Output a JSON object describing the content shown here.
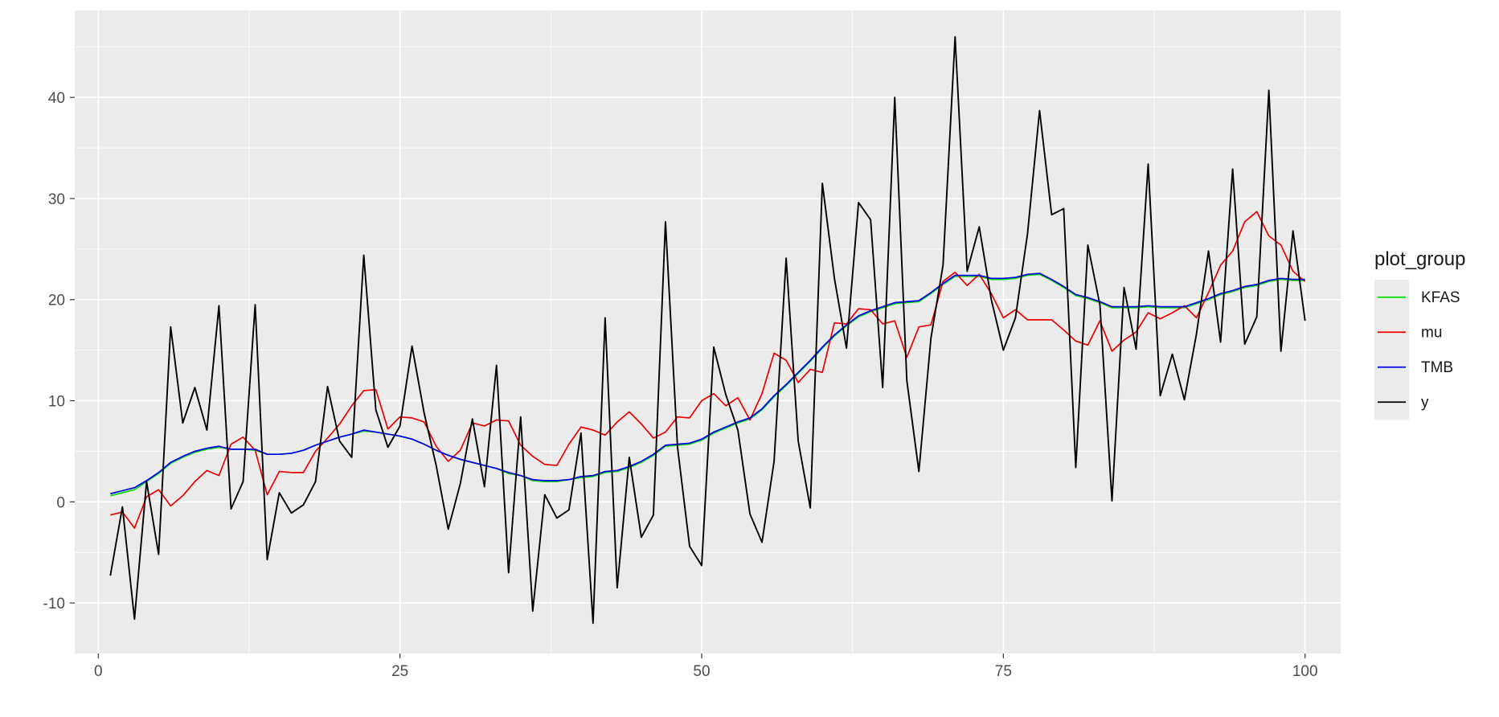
{
  "chart_data": {
    "type": "line",
    "title": "",
    "xlabel": "",
    "ylabel": "",
    "xlim": [
      -1.95,
      102.95
    ],
    "ylim": [
      -15,
      48.6
    ],
    "x_ticks": [
      0,
      25,
      50,
      75,
      100
    ],
    "y_ticks": [
      -10,
      0,
      10,
      20,
      30,
      40
    ],
    "grid": true,
    "legend": {
      "title": "plot_group",
      "position": "right"
    },
    "x": [
      1,
      2,
      3,
      4,
      5,
      6,
      7,
      8,
      9,
      10,
      11,
      12,
      13,
      14,
      15,
      16,
      17,
      18,
      19,
      20,
      21,
      22,
      23,
      24,
      25,
      26,
      27,
      28,
      29,
      30,
      31,
      32,
      33,
      34,
      35,
      36,
      37,
      38,
      39,
      40,
      41,
      42,
      43,
      44,
      45,
      46,
      47,
      48,
      49,
      50,
      51,
      52,
      53,
      54,
      55,
      56,
      57,
      58,
      59,
      60,
      61,
      62,
      63,
      64,
      65,
      66,
      67,
      68,
      69,
      70,
      71,
      72,
      73,
      74,
      75,
      76,
      77,
      78,
      79,
      80,
      81,
      82,
      83,
      84,
      85,
      86,
      87,
      88,
      89,
      90,
      91,
      92,
      93,
      94,
      95,
      96,
      97,
      98,
      99,
      100
    ],
    "series": [
      {
        "name": "KFAS",
        "color": "#00dd00",
        "values": [
          0.6,
          0.9,
          1.2,
          2.0,
          2.8,
          3.8,
          4.4,
          4.9,
          5.2,
          5.4,
          5.2,
          5.2,
          5.1,
          4.7,
          4.7,
          4.8,
          5.1,
          5.6,
          6.0,
          6.4,
          6.7,
          7.0,
          6.9,
          6.7,
          6.5,
          6.2,
          5.7,
          5.1,
          4.6,
          4.2,
          3.9,
          3.6,
          3.3,
          2.8,
          2.6,
          2.1,
          2.0,
          2.0,
          2.2,
          2.4,
          2.5,
          2.9,
          3.0,
          3.4,
          3.9,
          4.6,
          5.5,
          5.6,
          5.7,
          6.1,
          6.8,
          7.3,
          7.8,
          8.2,
          9.1,
          10.4,
          11.5,
          12.7,
          13.9,
          15.2,
          16.4,
          17.4,
          18.3,
          18.8,
          19.2,
          19.6,
          19.7,
          19.8,
          20.6,
          21.5,
          22.3,
          22.3,
          22.3,
          22.0,
          22.0,
          22.1,
          22.4,
          22.5,
          21.9,
          21.2,
          20.4,
          20.1,
          19.7,
          19.2,
          19.2,
          19.2,
          19.3,
          19.2,
          19.2,
          19.2,
          19.6,
          20.0,
          20.5,
          20.8,
          21.2,
          21.4,
          21.8,
          22.0,
          21.9,
          21.9
        ]
      },
      {
        "name": "mu",
        "color": "#ee0000",
        "values": [
          -1.3,
          -1.0,
          -2.6,
          0.5,
          1.2,
          -0.4,
          0.6,
          2.0,
          3.1,
          2.6,
          5.7,
          6.4,
          5.1,
          0.7,
          3.0,
          2.9,
          2.9,
          5.0,
          6.3,
          7.7,
          9.5,
          11.0,
          11.1,
          7.2,
          8.4,
          8.3,
          7.9,
          5.5,
          4.0,
          5.1,
          7.8,
          7.5,
          8.1,
          8.0,
          5.6,
          4.5,
          3.7,
          3.6,
          5.7,
          7.4,
          7.1,
          6.6,
          7.9,
          8.9,
          7.7,
          6.3,
          6.9,
          8.4,
          8.3,
          10.0,
          10.7,
          9.5,
          10.3,
          8.1,
          10.7,
          14.7,
          14.0,
          11.8,
          13.1,
          12.8,
          17.7,
          17.6,
          19.1,
          19.0,
          17.6,
          17.9,
          14.3,
          17.3,
          17.5,
          21.8,
          22.7,
          21.4,
          22.5,
          20.6,
          18.2,
          19.0,
          18.0,
          18.0,
          18.0,
          17.0,
          15.9,
          15.5,
          17.9,
          14.9,
          16.0,
          16.8,
          18.7,
          18.1,
          18.7,
          19.4,
          18.2,
          20.7,
          23.4,
          24.8,
          27.7,
          28.7,
          26.3,
          25.4,
          22.8,
          21.8
        ]
      },
      {
        "name": "TMB",
        "color": "#0000ee",
        "values": [
          0.8,
          1.1,
          1.4,
          2.1,
          2.9,
          3.9,
          4.5,
          5.0,
          5.3,
          5.5,
          5.2,
          5.2,
          5.2,
          4.7,
          4.7,
          4.8,
          5.1,
          5.6,
          6.0,
          6.4,
          6.7,
          7.1,
          6.9,
          6.7,
          6.5,
          6.2,
          5.7,
          5.1,
          4.6,
          4.2,
          3.9,
          3.6,
          3.3,
          2.9,
          2.6,
          2.2,
          2.1,
          2.1,
          2.2,
          2.5,
          2.6,
          3.0,
          3.1,
          3.5,
          4.0,
          4.7,
          5.6,
          5.7,
          5.8,
          6.2,
          6.9,
          7.4,
          7.9,
          8.3,
          9.2,
          10.5,
          11.6,
          12.8,
          14.0,
          15.3,
          16.5,
          17.5,
          18.4,
          18.9,
          19.3,
          19.7,
          19.8,
          19.9,
          20.7,
          21.6,
          22.4,
          22.4,
          22.4,
          22.1,
          22.1,
          22.2,
          22.5,
          22.6,
          22.0,
          21.3,
          20.5,
          20.2,
          19.8,
          19.3,
          19.3,
          19.3,
          19.4,
          19.3,
          19.3,
          19.3,
          19.7,
          20.1,
          20.6,
          20.9,
          21.3,
          21.5,
          21.9,
          22.1,
          22.0,
          22.0
        ]
      },
      {
        "name": "y",
        "color": "#000000",
        "values": [
          -7.3,
          -0.5,
          -11.6,
          2.0,
          -5.2,
          17.3,
          7.8,
          11.3,
          7.1,
          19.4,
          -0.7,
          2.0,
          19.5,
          -5.7,
          0.9,
          -1.1,
          -0.3,
          2.0,
          11.4,
          6.0,
          4.4,
          24.4,
          9.1,
          5.4,
          7.5,
          15.4,
          8.8,
          3.6,
          -2.7,
          1.8,
          8.2,
          1.5,
          13.5,
          -7.0,
          8.4,
          -10.8,
          0.7,
          -1.6,
          -0.8,
          6.8,
          -12.0,
          18.2,
          -8.5,
          4.4,
          -3.5,
          -1.3,
          27.7,
          5.4,
          -4.4,
          -6.3,
          15.3,
          10.6,
          7.1,
          -1.2,
          -4.0,
          4.0,
          24.1,
          6.0,
          -0.6,
          31.5,
          22.1,
          15.2,
          29.6,
          27.9,
          11.3,
          40.0,
          12.0,
          3.0,
          16.2,
          23.4,
          46.0,
          22.8,
          27.2,
          20.0,
          15.0,
          18.2,
          26.5,
          38.7,
          28.4,
          29.0,
          3.4,
          25.4,
          19.5,
          0.1,
          21.2,
          15.1,
          33.4,
          10.5,
          14.6,
          10.1,
          16.6,
          24.8,
          15.8,
          32.9,
          15.6,
          18.3,
          40.7,
          14.9,
          26.8,
          17.9
        ]
      }
    ]
  }
}
